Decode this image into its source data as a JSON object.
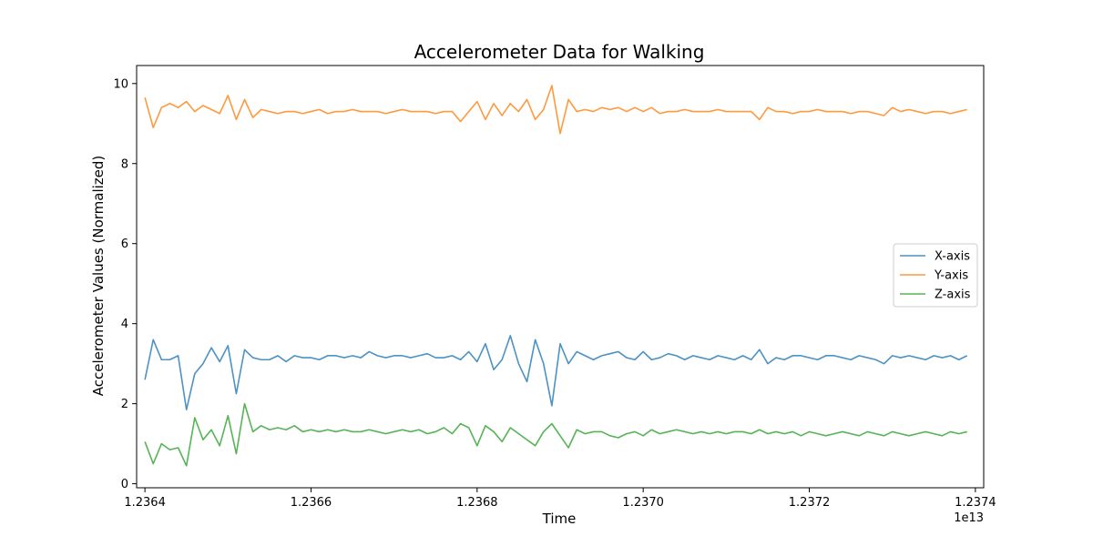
{
  "chart_data": {
    "type": "line",
    "title": "Accelerometer Data for Walking",
    "xlabel": "Time",
    "ylabel": "Accelerometer Values (Normalized)",
    "x_offset_label": "1e13",
    "xlim": [
      12363900000000.0,
      12374100000000.0
    ],
    "ylim": [
      -0.1,
      10.45
    ],
    "x_ticks": [
      12364000000000.0,
      12366000000000.0,
      12368000000000.0,
      12370000000000.0,
      12372000000000.0,
      12374000000000.0
    ],
    "x_tick_labels": [
      "1.2364",
      "1.2366",
      "1.2368",
      "1.2370",
      "1.2372",
      "1.2374"
    ],
    "y_ticks": [
      0,
      2,
      4,
      6,
      8,
      10
    ],
    "y_tick_labels": [
      "0",
      "2",
      "4",
      "6",
      "8",
      "10"
    ],
    "grid": false,
    "legend_position": "center-right",
    "x": [
      12364000000000.0,
      12364100000000.0,
      12364200000000.0,
      12364300000000.0,
      12364400000000.0,
      12364500000000.0,
      12364600000000.0,
      12364700000000.0,
      12364800000000.0,
      12364900000000.0,
      12365000000000.0,
      12365100000000.0,
      12365200000000.0,
      12365300000000.0,
      12365400000000.0,
      12365500000000.0,
      12365600000000.0,
      12365700000000.0,
      12365800000000.0,
      12365900000000.0,
      12366000000000.0,
      12366100000000.0,
      12366200000000.0,
      12366300000000.0,
      12366400000000.0,
      12366500000000.0,
      12366600000000.0,
      12366700000000.0,
      12366800000000.0,
      12366900000000.0,
      12367000000000.0,
      12367100000000.0,
      12367200000000.0,
      12367300000000.0,
      12367400000000.0,
      12367500000000.0,
      12367600000000.0,
      12367700000000.0,
      12367800000000.0,
      12367900000000.0,
      12368000000000.0,
      12368100000000.0,
      12368200000000.0,
      12368300000000.0,
      12368400000000.0,
      12368500000000.0,
      12368600000000.0,
      12368700000000.0,
      12368800000000.0,
      12368900000000.0,
      12369000000000.0,
      12369100000000.0,
      12369200000000.0,
      12369300000000.0,
      12369400000000.0,
      12369500000000.0,
      12369600000000.0,
      12369700000000.0,
      12369800000000.0,
      12369900000000.0,
      12370000000000.0,
      12370100000000.0,
      12370200000000.0,
      12370300000000.0,
      12370400000000.0,
      12370500000000.0,
      12370600000000.0,
      12370700000000.0,
      12370800000000.0,
      12370900000000.0,
      12371000000000.0,
      12371100000000.0,
      12371200000000.0,
      12371300000000.0,
      12371400000000.0,
      12371500000000.0,
      12371600000000.0,
      12371700000000.0,
      12371800000000.0,
      12371900000000.0,
      12372000000000.0,
      12372100000000.0,
      12372200000000.0,
      12372300000000.0,
      12372400000000.0,
      12372500000000.0,
      12372600000000.0,
      12372700000000.0,
      12372800000000.0,
      12372900000000.0,
      12373000000000.0,
      12373100000000.0,
      12373200000000.0,
      12373300000000.0,
      12373400000000.0,
      12373500000000.0,
      12373600000000.0,
      12373700000000.0,
      12373800000000.0,
      12373900000000.0
    ],
    "series": [
      {
        "name": "X-axis",
        "color": "#1f77b4",
        "values": [
          2.6,
          3.6,
          3.1,
          3.1,
          3.2,
          1.85,
          2.75,
          3.0,
          3.4,
          3.05,
          3.45,
          2.25,
          3.35,
          3.15,
          3.1,
          3.1,
          3.2,
          3.05,
          3.2,
          3.15,
          3.15,
          3.1,
          3.2,
          3.2,
          3.15,
          3.2,
          3.15,
          3.3,
          3.2,
          3.15,
          3.2,
          3.2,
          3.15,
          3.2,
          3.25,
          3.15,
          3.15,
          3.2,
          3.1,
          3.3,
          3.05,
          3.5,
          2.85,
          3.1,
          3.7,
          3.0,
          2.55,
          3.6,
          3.0,
          1.95,
          3.5,
          3.0,
          3.3,
          3.2,
          3.1,
          3.2,
          3.25,
          3.3,
          3.15,
          3.1,
          3.3,
          3.1,
          3.15,
          3.25,
          3.2,
          3.1,
          3.2,
          3.15,
          3.1,
          3.2,
          3.15,
          3.1,
          3.2,
          3.1,
          3.35,
          3.0,
          3.15,
          3.1,
          3.2,
          3.2,
          3.15,
          3.1,
          3.2,
          3.2,
          3.15,
          3.1,
          3.2,
          3.15,
          3.1,
          3.0,
          3.2,
          3.15,
          3.2,
          3.15,
          3.1,
          3.2,
          3.15,
          3.2,
          3.1,
          3.2
        ]
      },
      {
        "name": "Y-axis",
        "color": "#ff7f0e",
        "values": [
          9.65,
          8.9,
          9.4,
          9.5,
          9.4,
          9.55,
          9.3,
          9.45,
          9.35,
          9.25,
          9.7,
          9.1,
          9.6,
          9.15,
          9.35,
          9.3,
          9.25,
          9.3,
          9.3,
          9.25,
          9.3,
          9.35,
          9.25,
          9.3,
          9.3,
          9.35,
          9.3,
          9.3,
          9.3,
          9.25,
          9.3,
          9.35,
          9.3,
          9.3,
          9.3,
          9.25,
          9.3,
          9.3,
          9.05,
          9.3,
          9.55,
          9.1,
          9.5,
          9.2,
          9.5,
          9.3,
          9.6,
          9.1,
          9.35,
          9.95,
          8.75,
          9.6,
          9.3,
          9.35,
          9.3,
          9.4,
          9.35,
          9.4,
          9.3,
          9.4,
          9.3,
          9.4,
          9.25,
          9.3,
          9.3,
          9.35,
          9.3,
          9.3,
          9.3,
          9.35,
          9.3,
          9.3,
          9.3,
          9.3,
          9.1,
          9.4,
          9.3,
          9.3,
          9.25,
          9.3,
          9.3,
          9.35,
          9.3,
          9.3,
          9.3,
          9.25,
          9.3,
          9.3,
          9.25,
          9.2,
          9.4,
          9.3,
          9.35,
          9.3,
          9.25,
          9.3,
          9.3,
          9.25,
          9.3,
          9.35
        ]
      },
      {
        "name": "Z-axis",
        "color": "#2ca02c",
        "values": [
          1.05,
          0.5,
          1.0,
          0.85,
          0.9,
          0.45,
          1.65,
          1.1,
          1.35,
          0.95,
          1.7,
          0.75,
          2.0,
          1.3,
          1.45,
          1.35,
          1.4,
          1.35,
          1.45,
          1.3,
          1.35,
          1.3,
          1.35,
          1.3,
          1.35,
          1.3,
          1.3,
          1.35,
          1.3,
          1.25,
          1.3,
          1.35,
          1.3,
          1.35,
          1.25,
          1.3,
          1.4,
          1.25,
          1.5,
          1.4,
          0.95,
          1.45,
          1.3,
          1.05,
          1.4,
          1.25,
          1.1,
          0.95,
          1.3,
          1.5,
          1.2,
          0.9,
          1.35,
          1.25,
          1.3,
          1.3,
          1.2,
          1.15,
          1.25,
          1.3,
          1.2,
          1.35,
          1.25,
          1.3,
          1.35,
          1.3,
          1.25,
          1.3,
          1.25,
          1.3,
          1.25,
          1.3,
          1.3,
          1.25,
          1.35,
          1.25,
          1.3,
          1.25,
          1.3,
          1.2,
          1.3,
          1.25,
          1.2,
          1.25,
          1.3,
          1.25,
          1.2,
          1.3,
          1.25,
          1.2,
          1.3,
          1.25,
          1.2,
          1.25,
          1.3,
          1.25,
          1.2,
          1.3,
          1.25,
          1.3
        ]
      }
    ]
  }
}
